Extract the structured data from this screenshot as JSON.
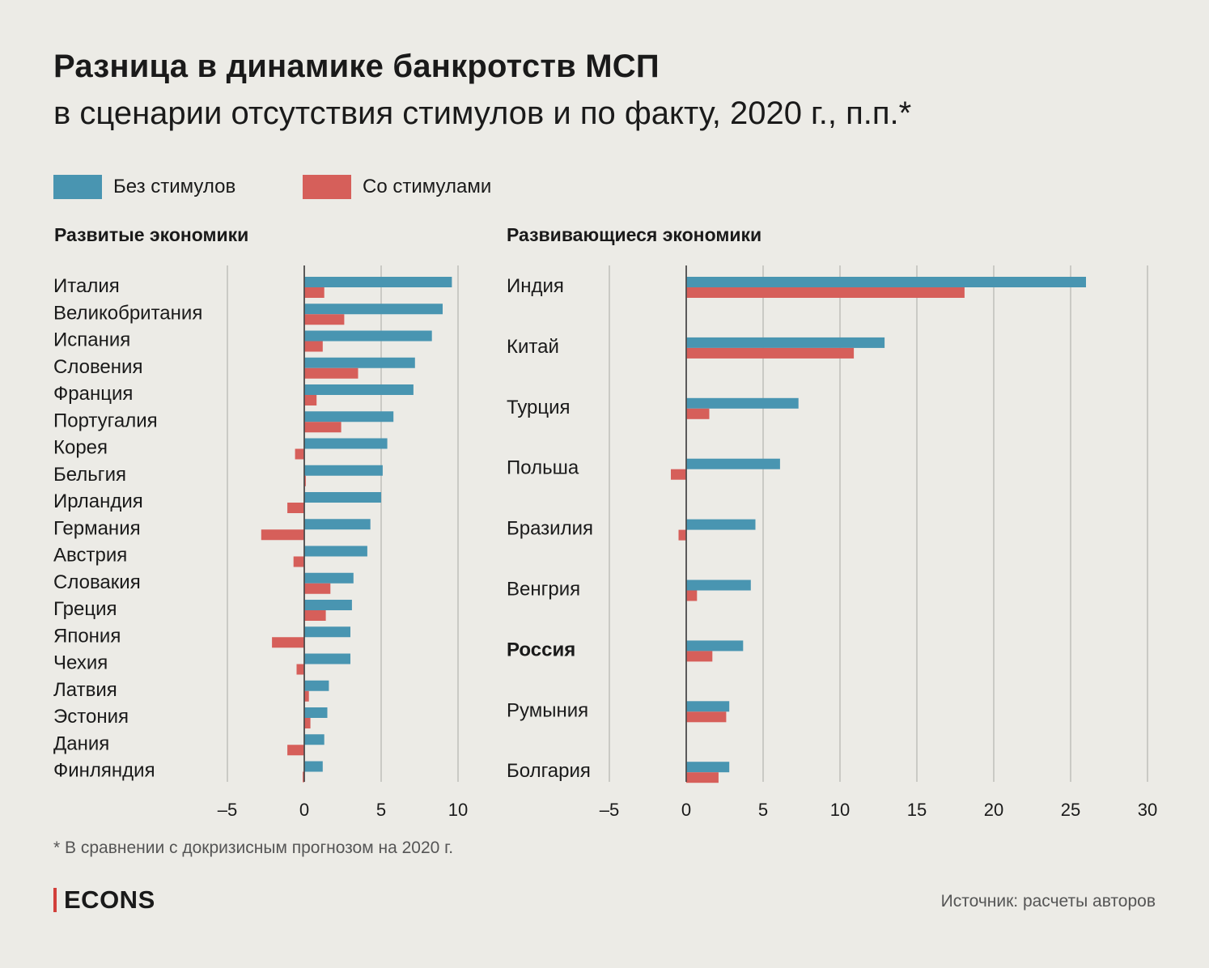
{
  "title": "Разница в динамике банкротств МСП",
  "subtitle": "в сценарии отсутствия стимулов и по факту, 2020 г., п.п.*",
  "legend": {
    "without": {
      "label": "Без стимулов",
      "color": "#4995b1"
    },
    "with": {
      "label": "Со стимулами",
      "color": "#d65f5a"
    }
  },
  "footnote": "* В сравнении с докризисным прогнозом на 2020 г.",
  "brand": "ECONS",
  "source": "Источник: расчеты авторов",
  "chart_data": [
    {
      "type": "bar",
      "orientation": "horizontal",
      "title": "Развитые экономики",
      "categories": [
        "Италия",
        "Великобритания",
        "Испания",
        "Словения",
        "Франция",
        "Португалия",
        "Корея",
        "Бельгия",
        "Ирландия",
        "Германия",
        "Австрия",
        "Словакия",
        "Греция",
        "Япония",
        "Чехия",
        "Латвия",
        "Эстония",
        "Дания",
        "Финляндия"
      ],
      "series": [
        {
          "name": "Без стимулов",
          "values": [
            9.6,
            9.0,
            8.3,
            7.2,
            7.1,
            5.8,
            5.4,
            5.1,
            5.0,
            4.3,
            4.1,
            3.2,
            3.1,
            3.0,
            3.0,
            1.6,
            1.5,
            1.3,
            1.2
          ]
        },
        {
          "name": "Со стимулами",
          "values": [
            1.3,
            2.6,
            1.2,
            3.5,
            0.8,
            2.4,
            -0.6,
            0.1,
            -1.1,
            -2.8,
            -0.7,
            1.7,
            1.4,
            -2.1,
            -0.5,
            0.3,
            0.4,
            -1.1,
            -0.1
          ]
        }
      ],
      "bold_categories": [],
      "xlim": [
        -5,
        10
      ],
      "ticks": [
        -5,
        0,
        5,
        10
      ],
      "tick_labels": [
        "–5",
        "0",
        "5",
        "10"
      ],
      "grid": true
    },
    {
      "type": "bar",
      "orientation": "horizontal",
      "title": "Развивающиеся экономики",
      "categories": [
        "Индия",
        "Китай",
        "Турция",
        "Польша",
        "Бразилия",
        "Венгрия",
        "Россия",
        "Румыния",
        "Болгария"
      ],
      "series": [
        {
          "name": "Без стимулов",
          "values": [
            26.0,
            12.9,
            7.3,
            6.1,
            4.5,
            4.2,
            3.7,
            2.8,
            2.8
          ]
        },
        {
          "name": "Со стимулами",
          "values": [
            18.1,
            10.9,
            1.5,
            -1.0,
            -0.5,
            0.7,
            1.7,
            2.6,
            2.1
          ]
        }
      ],
      "bold_categories": [
        "Россия"
      ],
      "xlim": [
        -5,
        30
      ],
      "ticks": [
        -5,
        0,
        5,
        10,
        15,
        20,
        25,
        30
      ],
      "tick_labels": [
        "–5",
        "0",
        "5",
        "10",
        "15",
        "20",
        "25",
        "30"
      ],
      "grid": true
    }
  ]
}
